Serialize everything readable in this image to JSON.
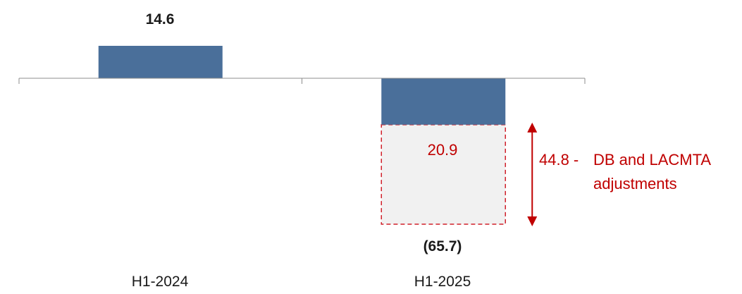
{
  "chart_data": {
    "type": "bar",
    "categories": [
      "H1-2024",
      "H1-2025"
    ],
    "values": [
      14.6,
      -65.7
    ],
    "value_labels": [
      "14.6",
      "(65.7)"
    ],
    "adjustment": {
      "category": "H1-2025",
      "inner_value": -20.9,
      "inner_label": "20.9",
      "amount": 44.8,
      "label_prefix": "44.8 -",
      "label_lines": [
        "DB and LACMTA",
        "adjustments"
      ]
    },
    "colors": {
      "bar": "#4a6f9a",
      "adjustment_fill": "#f1f1f1",
      "adjustment_border": "#d0202a",
      "annotation": "#c00000",
      "axis": "#8c8c8c"
    },
    "ylim": [
      -65.7,
      14.6
    ],
    "grid": false,
    "legend": "none"
  }
}
